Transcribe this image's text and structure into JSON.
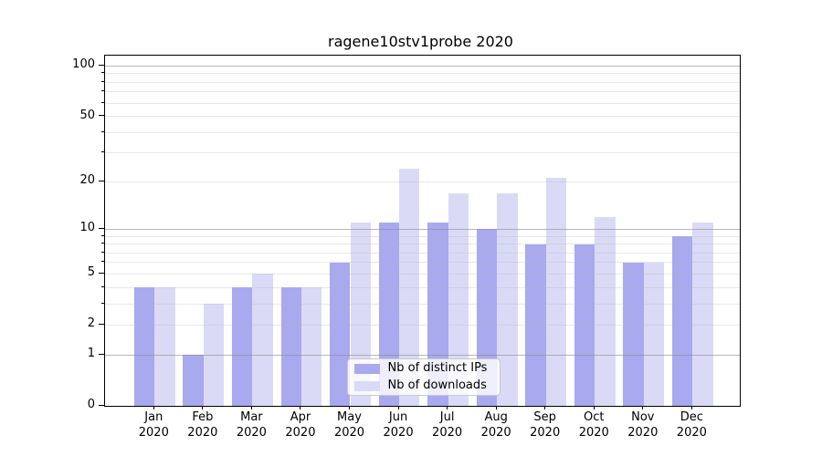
{
  "title": "ragene10stv1probe 2020",
  "legend": {
    "items": [
      {
        "label": "Nb of distinct IPs",
        "color": "#a9a9ef"
      },
      {
        "label": "Nb of downloads",
        "color": "#dadaf7"
      }
    ]
  },
  "axes": {
    "y_tick_labels": [
      "0",
      "1",
      "2",
      "5",
      "10",
      "20",
      "50",
      "100"
    ]
  },
  "chart_data": {
    "type": "bar",
    "title": "ragene10stv1probe 2020",
    "categories": [
      "Jan 2020",
      "Feb 2020",
      "Mar 2020",
      "Apr 2020",
      "May 2020",
      "Jun 2020",
      "Jul 2020",
      "Aug 2020",
      "Sep 2020",
      "Oct 2020",
      "Nov 2020",
      "Dec 2020"
    ],
    "series": [
      {
        "name": "Nb of distinct IPs",
        "color": "#a9a9ef",
        "values": [
          4,
          1,
          4,
          4,
          6,
          11,
          11,
          10,
          8,
          8,
          6,
          9
        ]
      },
      {
        "name": "Nb of downloads",
        "color": "#dadaf7",
        "values": [
          4,
          3,
          5,
          4,
          11,
          24,
          17,
          17,
          21,
          12,
          6,
          11
        ]
      }
    ],
    "xlabel": "",
    "ylabel": "",
    "yscale": "log1p",
    "y_ticks": [
      0,
      1,
      2,
      5,
      10,
      20,
      50,
      100
    ],
    "y_minor_gridlines": [
      2,
      3,
      4,
      5,
      6,
      7,
      8,
      9,
      20,
      30,
      40,
      50,
      60,
      70,
      80,
      90
    ],
    "y_major_gridlines": [
      1,
      10,
      100
    ],
    "ylim": [
      0,
      115
    ],
    "grid": true,
    "grid_above_bars": true,
    "legend_position": "lower center"
  }
}
